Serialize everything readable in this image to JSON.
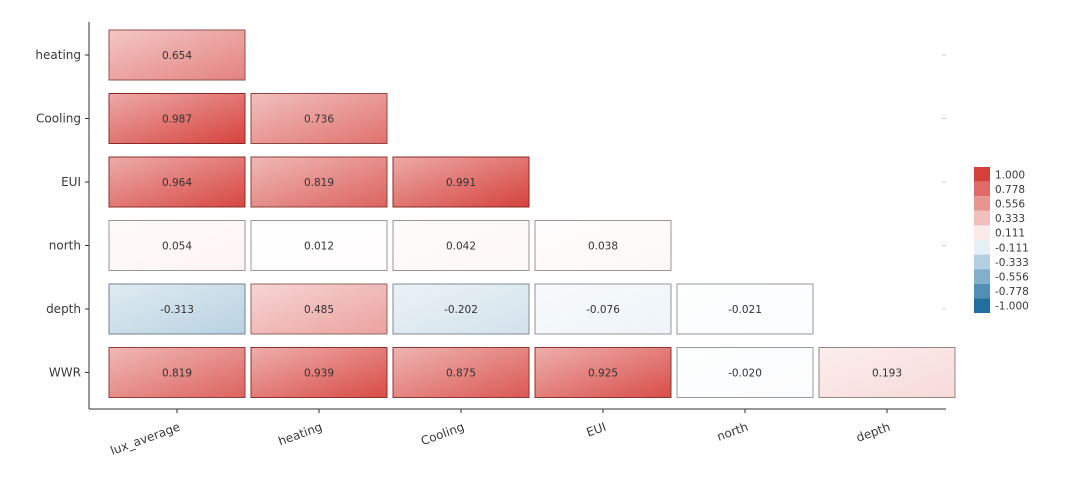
{
  "chart_data": {
    "type": "heatmap",
    "title": "",
    "rows": [
      "heating",
      "Cooling",
      "EUI",
      "north",
      "depth",
      "WWR"
    ],
    "cols": [
      "lux_average",
      "heating",
      "Cooling",
      "EUI",
      "north",
      "depth"
    ],
    "values": [
      [
        0.654
      ],
      [
        0.987,
        0.736
      ],
      [
        0.964,
        0.819,
        0.991
      ],
      [
        0.054,
        0.012,
        0.042,
        0.038
      ],
      [
        -0.313,
        0.485,
        -0.202,
        -0.076,
        -0.021
      ],
      [
        0.819,
        0.939,
        0.875,
        0.925,
        -0.02,
        0.193
      ]
    ],
    "labels": [
      [
        "0.654"
      ],
      [
        "0.987",
        "0.736"
      ],
      [
        "0.964",
        "0.819",
        "0.991"
      ],
      [
        "0.054",
        "0.012",
        "0.042",
        "0.038"
      ],
      [
        "-0.313",
        "0.485",
        "-0.202",
        "-0.076",
        "-0.021"
      ],
      [
        "0.819",
        "0.939",
        "0.875",
        "0.925",
        "-0.020",
        "0.193"
      ]
    ],
    "value_range": [
      -1,
      1
    ],
    "legend": {
      "position": "right",
      "ticks": [
        "1.000",
        "0.778",
        "0.556",
        "0.333",
        "0.111",
        "-0.111",
        "-0.333",
        "-0.556",
        "-0.778",
        "-1.000"
      ]
    },
    "colors": {
      "positive": "#d6403a",
      "neutral": "#ffffff",
      "negative": "#1f6f9f"
    }
  }
}
